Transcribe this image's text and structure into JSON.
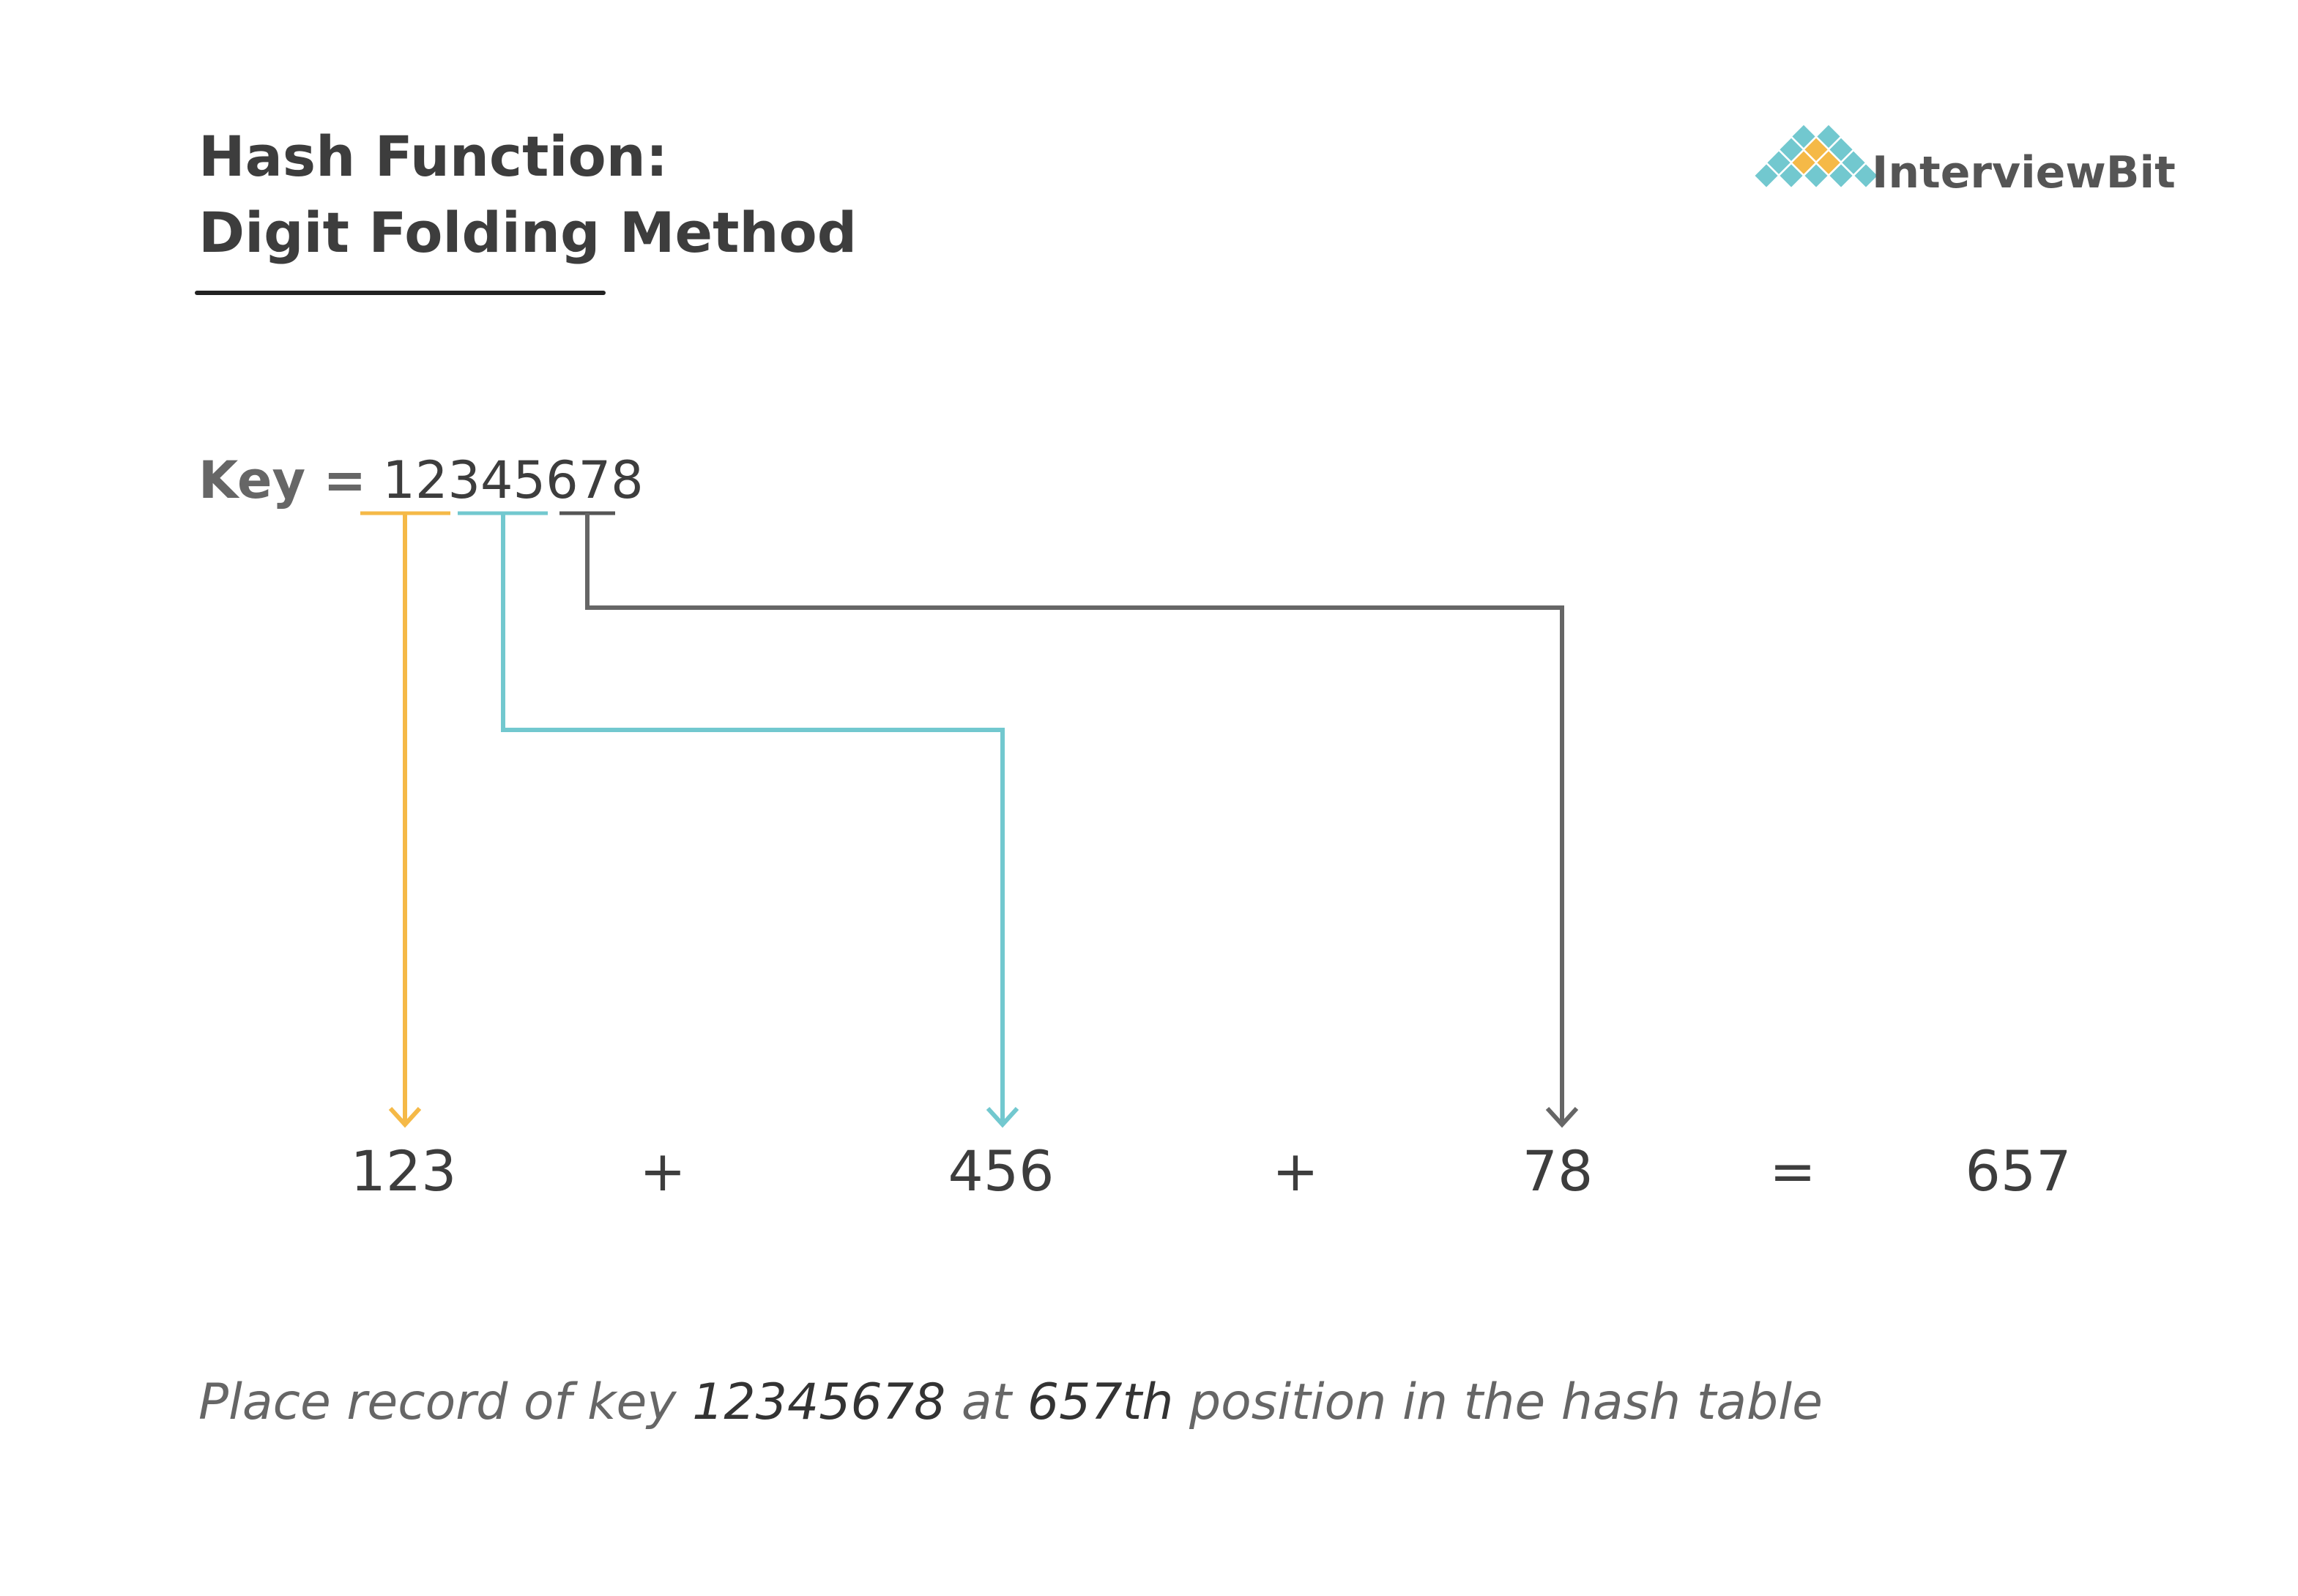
{
  "header": {
    "title_line1": "Hash Function:",
    "title_line2": "Digit Folding Method",
    "logo": "InterviewBit"
  },
  "key": {
    "label": "Key =",
    "value": "12345678"
  },
  "sum": {
    "parts": [
      "123",
      "456",
      "78"
    ],
    "operators": [
      "+",
      "+",
      "="
    ],
    "result": "657"
  },
  "caption": {
    "parts": [
      "Place record of key ",
      "12345678",
      " at ",
      "657th",
      " position in the hash table"
    ]
  }
}
